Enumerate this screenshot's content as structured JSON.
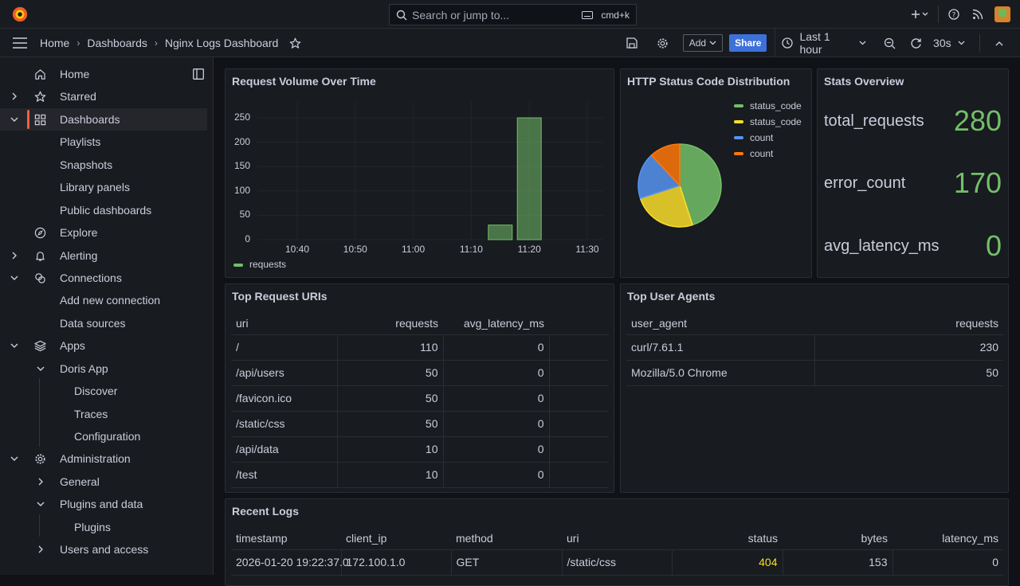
{
  "search": {
    "placeholder": "Search or jump to...",
    "shortcut": "cmd+k"
  },
  "breadcrumb": {
    "home": "Home",
    "dashboards": "Dashboards",
    "current": "Nginx Logs Dashboard"
  },
  "toolbar": {
    "add": "Add",
    "share": "Share",
    "time_range": "Last 1 hour",
    "refresh": "30s"
  },
  "sidebar": {
    "items": [
      {
        "label": "Home"
      },
      {
        "label": "Starred"
      },
      {
        "label": "Dashboards"
      },
      {
        "label": "Playlists"
      },
      {
        "label": "Snapshots"
      },
      {
        "label": "Library panels"
      },
      {
        "label": "Public dashboards"
      },
      {
        "label": "Explore"
      },
      {
        "label": "Alerting"
      },
      {
        "label": "Connections"
      },
      {
        "label": "Add new connection"
      },
      {
        "label": "Data sources"
      },
      {
        "label": "Apps"
      },
      {
        "label": "Doris App"
      },
      {
        "label": "Discover"
      },
      {
        "label": "Traces"
      },
      {
        "label": "Configuration"
      },
      {
        "label": "Administration"
      },
      {
        "label": "General"
      },
      {
        "label": "Plugins and data"
      },
      {
        "label": "Plugins"
      },
      {
        "label": "Users and access"
      }
    ]
  },
  "panels": {
    "request_volume": {
      "title": "Request Volume Over Time",
      "legend": "requests"
    },
    "status_dist": {
      "title": "HTTP Status Code Distribution",
      "legend": [
        "status_code",
        "status_code",
        "count",
        "count"
      ]
    },
    "stats": {
      "title": "Stats Overview",
      "rows": [
        {
          "label": "total_requests",
          "value": "280"
        },
        {
          "label": "error_count",
          "value": "170"
        },
        {
          "label": "avg_latency_ms",
          "value": "0"
        }
      ]
    },
    "top_uris": {
      "title": "Top Request URIs",
      "headers": [
        "uri",
        "requests",
        "avg_latency_ms"
      ],
      "rows": [
        [
          "/",
          "110",
          "0"
        ],
        [
          "/api/users",
          "50",
          "0"
        ],
        [
          "/favicon.ico",
          "50",
          "0"
        ],
        [
          "/static/css",
          "50",
          "0"
        ],
        [
          "/api/data",
          "10",
          "0"
        ],
        [
          "/test",
          "10",
          "0"
        ]
      ]
    },
    "top_agents": {
      "title": "Top User Agents",
      "headers": [
        "user_agent",
        "requests"
      ],
      "rows": [
        [
          "curl/7.61.1",
          "230"
        ],
        [
          "Mozilla/5.0 Chrome",
          "50"
        ]
      ]
    },
    "recent_logs": {
      "title": "Recent Logs",
      "headers": [
        "timestamp",
        "client_ip",
        "method",
        "uri",
        "status",
        "bytes",
        "latency_ms"
      ],
      "rows": [
        [
          "2026-01-20 19:22:37.0",
          "172.100.1.0",
          "GET",
          "/static/css",
          "404",
          "153",
          "0"
        ]
      ]
    }
  },
  "colors": {
    "green": "#73bf69",
    "yellow": "#fade2a",
    "blue": "#5794f2",
    "orange": "#ff780a",
    "accent": "#f55f3e"
  },
  "chart_data": [
    {
      "type": "bar",
      "x": [
        "11:15",
        "11:20"
      ],
      "categories": [
        "10:40",
        "10:50",
        "11:00",
        "11:10",
        "11:20",
        "11:30"
      ],
      "series": [
        {
          "name": "requests",
          "values": [
            30,
            250
          ]
        }
      ],
      "ylim": [
        0,
        250
      ],
      "yticks": [
        0,
        50,
        100,
        150,
        200,
        250
      ]
    },
    {
      "type": "pie",
      "labels": [
        "status_code",
        "status_code",
        "count",
        "count"
      ],
      "values": [
        45,
        25,
        18,
        12
      ],
      "colors": [
        "#73bf69",
        "#fade2a",
        "#5794f2",
        "#ff780a"
      ]
    }
  ]
}
